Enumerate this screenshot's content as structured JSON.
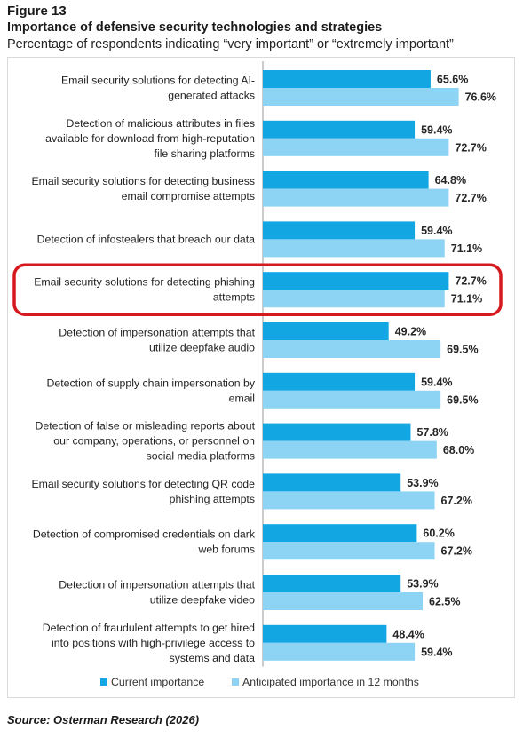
{
  "figure_label": "Figure 13",
  "title": "Importance of defensive security technologies and strategies",
  "subtitle": "Percentage of respondents indicating “very important” or “extremely important”",
  "source": "Source: Osterman Research (2026)",
  "colors": {
    "current": "#12a6e3",
    "anticipated": "#8dd3f3",
    "highlight": "#d6191f",
    "axis": "#9a9a9a"
  },
  "chart_data": {
    "type": "bar",
    "orientation": "horizontal",
    "categories": [
      [
        "Email security solutions for detecting AI-",
        "generated attacks"
      ],
      [
        "Detection of malicious attributes in files",
        "available for download from high-reputation",
        "file sharing platforms"
      ],
      [
        "Email security solutions for detecting business",
        "email compromise attempts"
      ],
      [
        "Detection of infostealers that breach our data"
      ],
      [
        "Email security solutions for detecting phishing",
        "attempts"
      ],
      [
        "Detection of impersonation attempts that",
        "utilize deepfake audio"
      ],
      [
        "Detection of supply chain impersonation by",
        "email"
      ],
      [
        "Detection of false or misleading reports about",
        "our company, operations, or personnel on",
        "social media platforms"
      ],
      [
        "Email security solutions for detecting QR code",
        "phishing attempts"
      ],
      [
        "Detection of compromised credentials on dark",
        "web forums"
      ],
      [
        "Detection of impersonation attempts that",
        "utilize deepfake video"
      ],
      [
        "Detection of fraudulent attempts to get hired",
        "into positions with high-privilege access to",
        "systems and data"
      ]
    ],
    "series": [
      {
        "name": "Current importance",
        "values": [
          65.6,
          59.4,
          64.8,
          59.4,
          72.7,
          49.2,
          59.4,
          57.8,
          53.9,
          60.2,
          53.9,
          48.4
        ],
        "labels": [
          "65.6%",
          "59.4%",
          "64.8%",
          "59.4%",
          "72.7%",
          "49.2%",
          "59.4%",
          "57.8%",
          "53.9%",
          "60.2%",
          "53.9%",
          "48.4%"
        ]
      },
      {
        "name": "Anticipated importance in 12 months",
        "values": [
          76.6,
          72.7,
          72.7,
          71.1,
          71.1,
          69.5,
          69.5,
          68.0,
          67.2,
          67.2,
          62.5,
          59.4
        ],
        "labels": [
          "76.6%",
          "72.7%",
          "72.7%",
          "71.1%",
          "71.1%",
          "69.5%",
          "69.5%",
          "68.0%",
          "67.2%",
          "67.2%",
          "62.5%",
          "59.4%"
        ]
      }
    ],
    "xlim": [
      0,
      100
    ],
    "highlighted_category_index": 4,
    "legend_position": "bottom",
    "grid": false
  }
}
